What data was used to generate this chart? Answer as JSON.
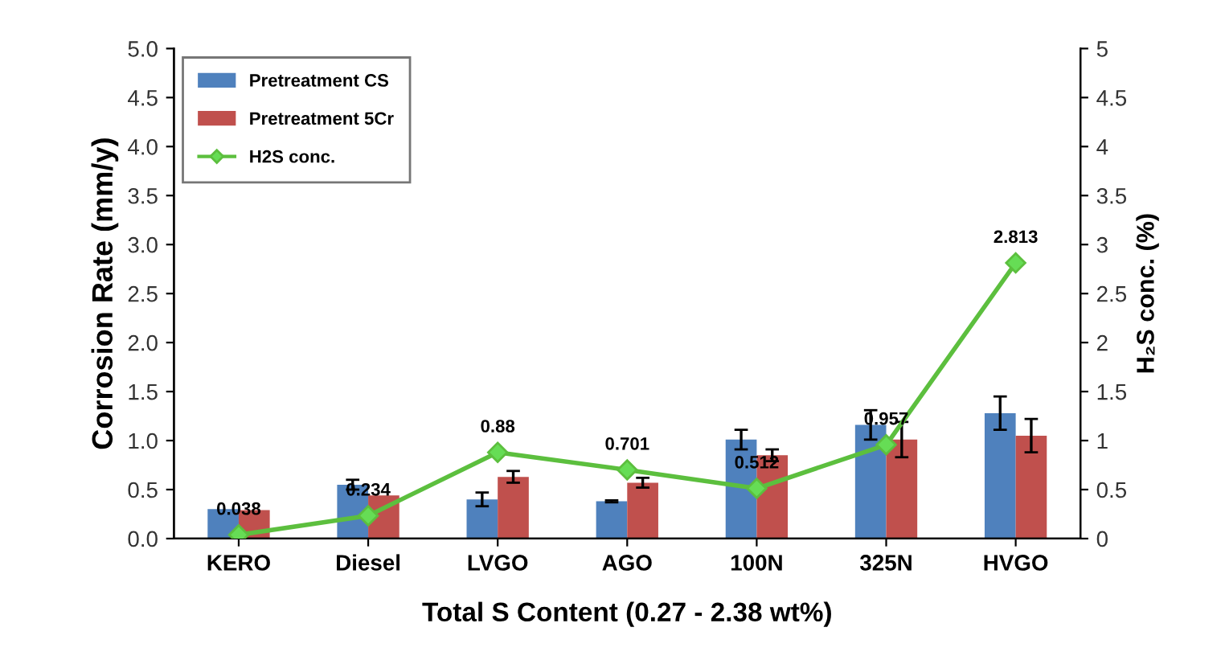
{
  "chart_data": {
    "type": "bar",
    "xlabel": "Total S Content (0.27 - 2.38 wt%)",
    "ylabel": "Corrosion Rate (mm/y)",
    "y2label": "H₂S conc. (%)",
    "categories": [
      "KERO",
      "Diesel",
      "LVGO",
      "AGO",
      "100N",
      "325N",
      "HVGO"
    ],
    "series": [
      {
        "name": "Pretreatment CS",
        "color": "#4f81bd",
        "values": [
          0.3,
          0.55,
          0.4,
          0.38,
          1.01,
          1.16,
          1.28
        ],
        "errors": [
          null,
          0.05,
          0.07,
          0.01,
          0.1,
          0.15,
          0.17
        ]
      },
      {
        "name": "Pretreatment 5Cr",
        "color": "#c0504d",
        "values": [
          0.29,
          0.44,
          0.63,
          0.57,
          0.85,
          1.01,
          1.05
        ],
        "errors": [
          null,
          null,
          0.06,
          0.05,
          0.06,
          0.18,
          0.17
        ]
      },
      {
        "name": "H2S conc.",
        "type": "line",
        "axis": "y2",
        "color": "#5cbf3e",
        "marker": "diamond",
        "values": [
          0.038,
          0.234,
          0.88,
          0.701,
          0.512,
          0.957,
          2.813
        ],
        "value_labels": [
          "0.038",
          "0.234",
          "0.88",
          "0.701",
          "0.512",
          "0.957",
          "2.813"
        ]
      }
    ],
    "ylim": [
      0,
      5
    ],
    "yticks": [
      {
        "value": 0,
        "label": "0.0"
      },
      {
        "value": 0.5,
        "label": "0.5"
      },
      {
        "value": 1,
        "label": "1.0"
      },
      {
        "value": 1.5,
        "label": "1.5"
      },
      {
        "value": 2,
        "label": "2.0"
      },
      {
        "value": 2.5,
        "label": "2.5"
      },
      {
        "value": 3,
        "label": "3.0"
      },
      {
        "value": 3.5,
        "label": "3.5"
      },
      {
        "value": 4,
        "label": "4.0"
      },
      {
        "value": 4.5,
        "label": "4.5"
      },
      {
        "value": 5,
        "label": "5.0"
      }
    ],
    "y2lim": [
      0,
      5
    ],
    "y2ticks": [
      0,
      0.5,
      1,
      1.5,
      2,
      2.5,
      3,
      3.5,
      4,
      4.5,
      5
    ],
    "grid": false,
    "legend": "top left"
  }
}
